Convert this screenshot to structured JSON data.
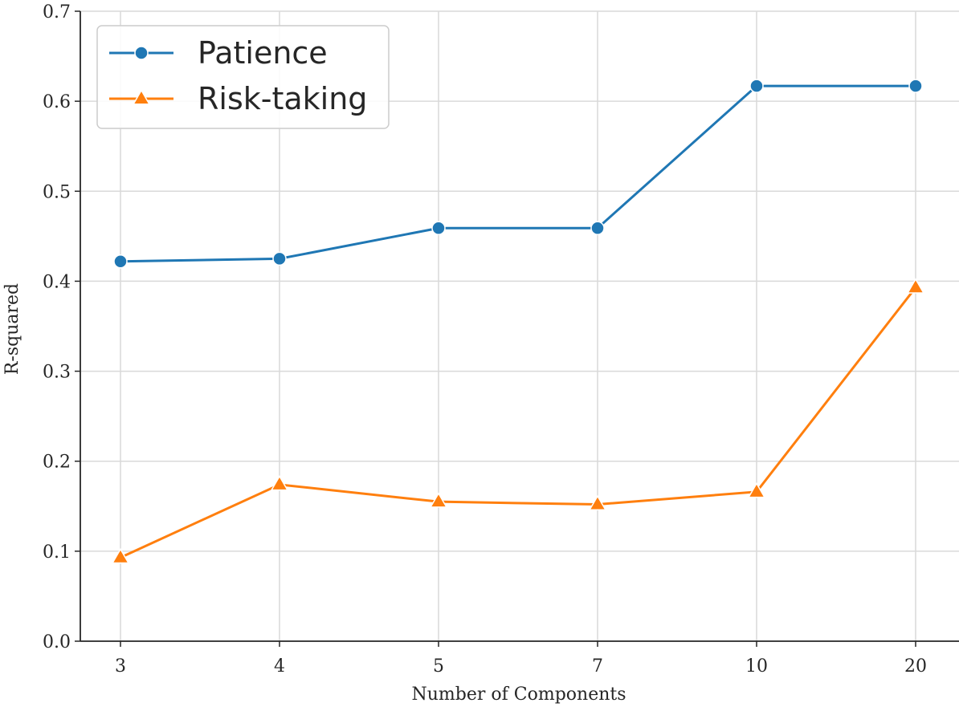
{
  "chart_data": {
    "type": "line",
    "categories": [
      "3",
      "4",
      "5",
      "7",
      "10",
      "20"
    ],
    "series": [
      {
        "name": "Patience",
        "values": [
          0.422,
          0.425,
          0.459,
          0.459,
          0.617,
          0.617
        ],
        "color": "#1f77b4",
        "marker": "circle"
      },
      {
        "name": "Risk-taking",
        "values": [
          0.093,
          0.174,
          0.155,
          0.152,
          0.166,
          0.393
        ],
        "color": "#ff7f0e",
        "marker": "triangle"
      }
    ],
    "xlabel": "Number of Components",
    "ylabel": "R-squared",
    "ylim": [
      0,
      0.7
    ],
    "yticks": [
      "0.0",
      "0.1",
      "0.2",
      "0.3",
      "0.4",
      "0.5",
      "0.6",
      "0.7"
    ],
    "grid": true,
    "legend_position": "top-left"
  }
}
